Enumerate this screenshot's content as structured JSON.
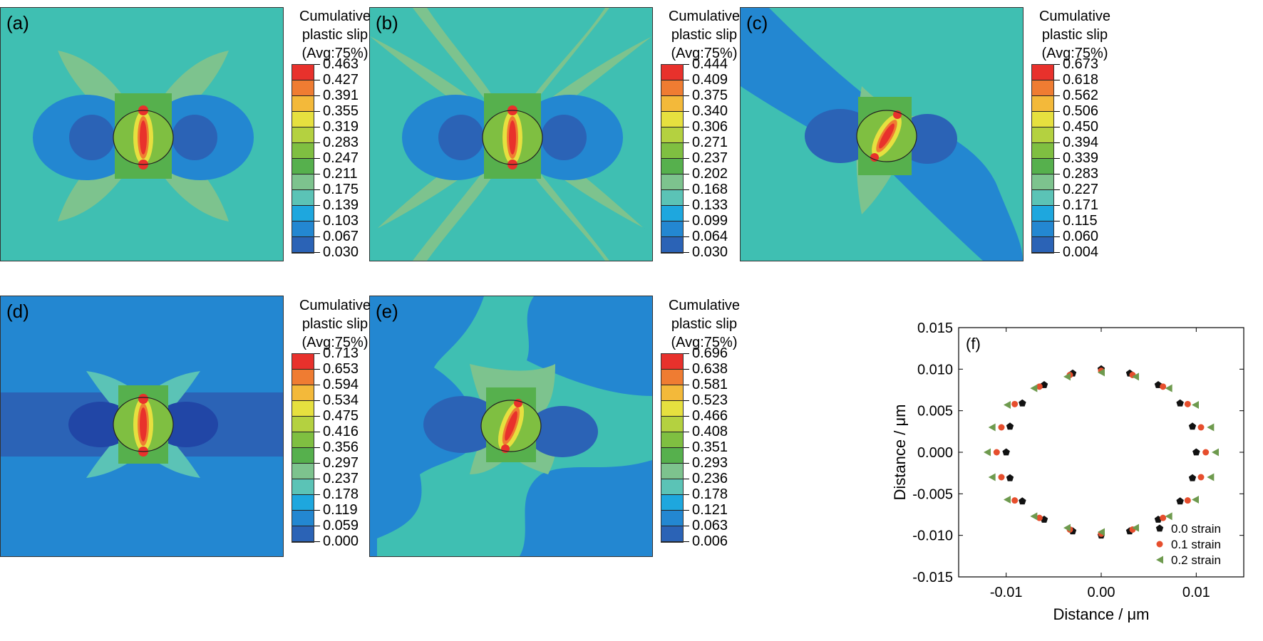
{
  "colors": {
    "background_field": "#3fbfb2",
    "palette": [
      "#2146a6",
      "#2b63b6",
      "#2387d1",
      "#1ea7de",
      "#5bc3b6",
      "#7dc38e",
      "#56b04d",
      "#7fbf41",
      "#b4d140",
      "#e6e03f",
      "#f3b93a",
      "#ef7c32",
      "#e8312c"
    ],
    "strain0": "#111111",
    "strain1": "#e64e2d",
    "strain2": "#6e9a4e"
  },
  "panels": [
    {
      "id": "a",
      "label": "(a)",
      "legend_title": [
        "Cumulative",
        "plastic slip",
        "(Avg:75%)"
      ],
      "ticks": [
        "0.463",
        "0.427",
        "0.391",
        "0.355",
        "0.319",
        "0.283",
        "0.247",
        "0.211",
        "0.175",
        "0.139",
        "0.103",
        "0.067",
        "0.030"
      ]
    },
    {
      "id": "b",
      "label": "(b)",
      "legend_title": [
        "Cumulative",
        "plastic slip",
        "(Avg:75%)"
      ],
      "ticks": [
        "0.444",
        "0.409",
        "0.375",
        "0.340",
        "0.306",
        "0.271",
        "0.237",
        "0.202",
        "0.168",
        "0.133",
        "0.099",
        "0.064",
        "0.030"
      ]
    },
    {
      "id": "c",
      "label": "(c)",
      "legend_title": [
        "Cumulative",
        "plastic slip",
        "(Avg:75%)"
      ],
      "ticks": [
        "0.673",
        "0.618",
        "0.562",
        "0.506",
        "0.450",
        "0.394",
        "0.339",
        "0.283",
        "0.227",
        "0.171",
        "0.115",
        "0.060",
        "0.004"
      ]
    },
    {
      "id": "d",
      "label": "(d)",
      "legend_title": [
        "Cumulative",
        "plastic slip",
        "(Avg:75%)"
      ],
      "ticks": [
        "0.713",
        "0.653",
        "0.594",
        "0.534",
        "0.475",
        "0.416",
        "0.356",
        "0.297",
        "0.237",
        "0.178",
        "0.119",
        "0.059",
        "0.000"
      ]
    },
    {
      "id": "e",
      "label": "(e)",
      "legend_title": [
        "Cumulative",
        "plastic slip",
        "(Avg:75%)"
      ],
      "ticks": [
        "0.696",
        "0.638",
        "0.581",
        "0.523",
        "0.466",
        "0.408",
        "0.351",
        "0.293",
        "0.236",
        "0.178",
        "0.121",
        "0.063",
        "0.006"
      ]
    }
  ],
  "chart_data": {
    "type": "scatter",
    "label": "(f)",
    "xlabel": "Distance / μm",
    "ylabel": "Distance / μm",
    "xlim": [
      -0.015,
      0.015
    ],
    "ylim": [
      -0.015,
      0.015
    ],
    "xticks": [
      -0.01,
      0.0,
      0.01
    ],
    "xtick_labels": [
      "-0.01",
      "0.00",
      "0.01"
    ],
    "yticks": [
      0.015,
      0.01,
      0.005,
      0.0,
      -0.005,
      -0.01,
      -0.015
    ],
    "ytick_labels": [
      "0.015",
      "0.010",
      "0.005",
      "0.000",
      "-0.005",
      "-0.010",
      "-0.015"
    ],
    "series": [
      {
        "name": "0.0 strain",
        "marker": "pentagon",
        "x": [
          0.0,
          0.003,
          0.006,
          0.0083,
          0.0096,
          0.01,
          0.0096,
          0.0083,
          0.006,
          0.003,
          0.0,
          -0.003,
          -0.006,
          -0.0083,
          -0.0096,
          -0.01,
          -0.0096,
          -0.0083,
          -0.006,
          -0.003
        ],
        "y": [
          0.01,
          0.0095,
          0.0081,
          0.0059,
          0.0031,
          0.0,
          -0.0031,
          -0.0059,
          -0.0081,
          -0.0095,
          -0.01,
          -0.0095,
          -0.0081,
          -0.0059,
          -0.0031,
          0.0,
          0.0031,
          0.0059,
          0.0081,
          0.0095
        ]
      },
      {
        "name": "0.1 strain",
        "marker": "circle",
        "x": [
          0.0,
          0.0033,
          0.0065,
          0.0091,
          0.0105,
          0.011,
          0.0105,
          0.0091,
          0.0065,
          0.0033,
          0.0,
          -0.0033,
          -0.0065,
          -0.0091,
          -0.0105,
          -0.011,
          -0.0105,
          -0.0091,
          -0.0065,
          -0.0033
        ],
        "y": [
          0.0098,
          0.0093,
          0.0079,
          0.0058,
          0.003,
          0.0,
          -0.003,
          -0.0058,
          -0.0079,
          -0.0093,
          -0.0098,
          -0.0093,
          -0.0079,
          -0.0058,
          -0.003,
          0.0,
          0.003,
          0.0058,
          0.0079,
          0.0093
        ]
      },
      {
        "name": "0.2 strain",
        "marker": "triangle-left",
        "x": [
          0.0,
          0.0036,
          0.0071,
          0.0099,
          0.0115,
          0.012,
          0.0115,
          0.0099,
          0.0071,
          0.0036,
          0.0,
          -0.0036,
          -0.0071,
          -0.0099,
          -0.0115,
          -0.012,
          -0.0115,
          -0.0099,
          -0.0071,
          -0.0036
        ],
        "y": [
          0.0096,
          0.0091,
          0.0077,
          0.0057,
          0.003,
          0.0,
          -0.003,
          -0.0057,
          -0.0077,
          -0.0091,
          -0.0096,
          -0.0091,
          -0.0077,
          -0.0057,
          -0.003,
          0.0,
          0.003,
          0.0057,
          0.0077,
          0.0091
        ]
      }
    ],
    "legend_position": "bottom-right",
    "grid": false
  }
}
